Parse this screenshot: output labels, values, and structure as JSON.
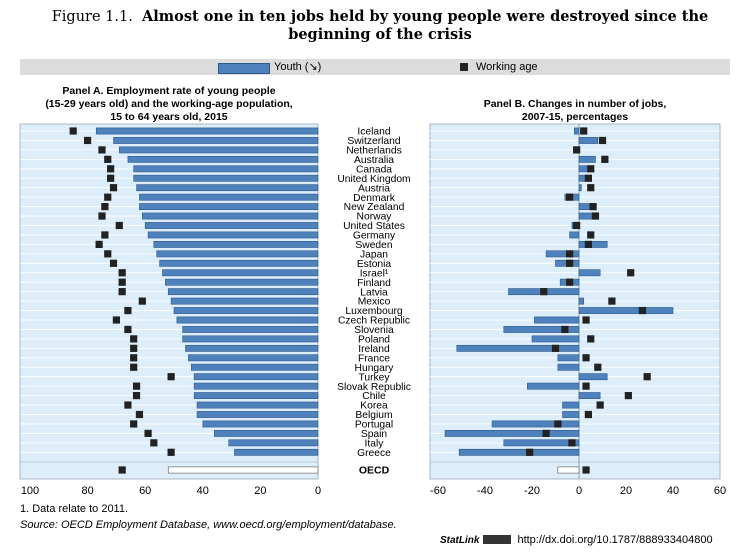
{
  "title": {
    "label": "Figure 1.1.",
    "text": "Almost one in ten jobs held by young people were destroyed since the beginning of the crisis"
  },
  "legend": {
    "youth": "Youth (↘)",
    "working_age": "Working age"
  },
  "colors": {
    "bar": "#4f81bd",
    "bar_border": "#2a5a8a",
    "marker": "#222222",
    "plot_bg": "#ddeefa",
    "oecd_bar": "#ffffff"
  },
  "chart_data": [
    {
      "type": "bar",
      "orientation": "horizontal",
      "title": "Panel A. Employment rate of young people (15-29 years old) and the working-age population, 15 to 64 years old, 2015",
      "title_lines": [
        "Panel A. Employment rate of young people",
        "(15-29 years old) and the working-age population,",
        "15 to 64 years old, 2015"
      ],
      "axis_reversed": true,
      "xlim": [
        0,
        100
      ],
      "xticks": [
        "100",
        "80",
        "60",
        "40",
        "20",
        "0"
      ],
      "categories": [
        "Iceland",
        "Switzerland",
        "Netherlands",
        "Australia",
        "Canada",
        "United Kingdom",
        "Austria",
        "Denmark",
        "New Zealand",
        "Norway",
        "United States",
        "Germany",
        "Sweden",
        "Japan",
        "Estonia",
        "Israel¹",
        "Finland",
        "Latvia",
        "Mexico",
        "Luxembourg",
        "Czech Republic",
        "Slovenia",
        "Poland",
        "Ireland",
        "France",
        "Hungary",
        "Turkey",
        "Slovak Republic",
        "Chile",
        "Korea",
        "Belgium",
        "Portugal",
        "Spain",
        "Italy",
        "Greece",
        "OECD"
      ],
      "series": [
        {
          "name": "Youth",
          "values": [
            77,
            71,
            69,
            66,
            64,
            64,
            63,
            62,
            62,
            61,
            60,
            59,
            57,
            56,
            55,
            54,
            53,
            52,
            51,
            50,
            49,
            47,
            47,
            46,
            45,
            44,
            43,
            43,
            43,
            42,
            42,
            40,
            36,
            31,
            29,
            52
          ]
        },
        {
          "name": "Working age",
          "values": [
            85,
            80,
            75,
            73,
            72,
            72,
            71,
            73,
            74,
            75,
            69,
            74,
            76,
            73,
            71,
            68,
            68,
            68,
            61,
            66,
            70,
            66,
            64,
            64,
            64,
            64,
            51,
            63,
            63,
            66,
            62,
            64,
            59,
            57,
            51,
            68
          ]
        }
      ]
    },
    {
      "type": "bar",
      "orientation": "horizontal",
      "title": "Panel B. Changes in number of jobs, 2007-15, percentages",
      "title_lines": [
        "Panel B. Changes in number of jobs,",
        "2007-15, percentages"
      ],
      "xlim": [
        -62,
        62
      ],
      "xticks": [
        "-60",
        "-40",
        "-20",
        "0",
        "20",
        "40",
        "60"
      ],
      "categories": [
        "Iceland",
        "Switzerland",
        "Netherlands",
        "Australia",
        "Canada",
        "United Kingdom",
        "Austria",
        "Denmark",
        "New Zealand",
        "Norway",
        "United States",
        "Germany",
        "Sweden",
        "Japan",
        "Estonia",
        "Israel¹",
        "Finland",
        "Latvia",
        "Mexico",
        "Luxembourg",
        "Czech Republic",
        "Slovenia",
        "Poland",
        "Ireland",
        "France",
        "Hungary",
        "Turkey",
        "Slovak Republic",
        "Chile",
        "Korea",
        "Belgium",
        "Portugal",
        "Spain",
        "Italy",
        "Greece",
        "OECD"
      ],
      "series": [
        {
          "name": "Youth",
          "values": [
            -2,
            8,
            -2,
            7,
            4,
            3,
            1,
            -6,
            5,
            7,
            -3,
            -4,
            12,
            -14,
            -10,
            9,
            -8,
            -30,
            2,
            40,
            -19,
            -32,
            -20,
            -52,
            -9,
            -9,
            12,
            -22,
            9,
            -7,
            -7,
            -37,
            -57,
            -32,
            -51,
            -9
          ]
        },
        {
          "name": "Working age",
          "values": [
            2,
            10,
            -1,
            11,
            5,
            4,
            5,
            -4,
            6,
            7,
            -1,
            5,
            4,
            -4,
            -4,
            22,
            -4,
            -15,
            14,
            27,
            3,
            -6,
            5,
            -10,
            3,
            8,
            29,
            3,
            21,
            9,
            4,
            -9,
            -14,
            -3,
            -21,
            3
          ]
        }
      ]
    }
  ],
  "footnotes": {
    "note": "1. Data relate to 2011.",
    "source": "Source: OECD Employment Database, www.oecd.org/employment/database.",
    "statlink_brand": "StatLink",
    "statlink_url": "http://dx.doi.org/10.1787/888933404800"
  }
}
